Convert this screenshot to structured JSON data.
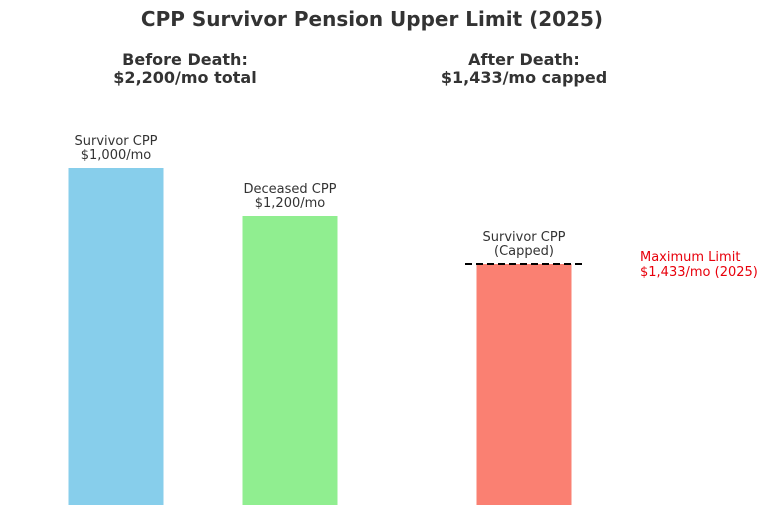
{
  "chart_data": {
    "type": "bar",
    "title": "CPP Survivor Pension Upper Limit (2025)",
    "panels": [
      {
        "title_line1": "Before Death:",
        "title_line2": "$2,200/mo total",
        "bars": [
          {
            "label_line1": "Survivor CPP",
            "label_line2": "$1,000/mo",
            "value": 1000,
            "color": "#87ceeb"
          },
          {
            "label_line1": "Deceased CPP",
            "label_line2": "$1,200/mo",
            "value": 1200,
            "color": "#90ee90"
          }
        ]
      },
      {
        "title_line1": "After Death:",
        "title_line2": "$1,433/mo capped",
        "bars": [
          {
            "label_line1": "Survivor CPP",
            "label_line2": "(Capped)",
            "value": 1433,
            "color": "#fa8072"
          }
        ]
      }
    ],
    "limit": {
      "value": 1433,
      "label_line1": "Maximum Limit",
      "label_line2": "$1,433/mo (2025)",
      "color": "#e8000b",
      "line_style": "dashed"
    },
    "ylim": [
      0,
      1433
    ]
  }
}
